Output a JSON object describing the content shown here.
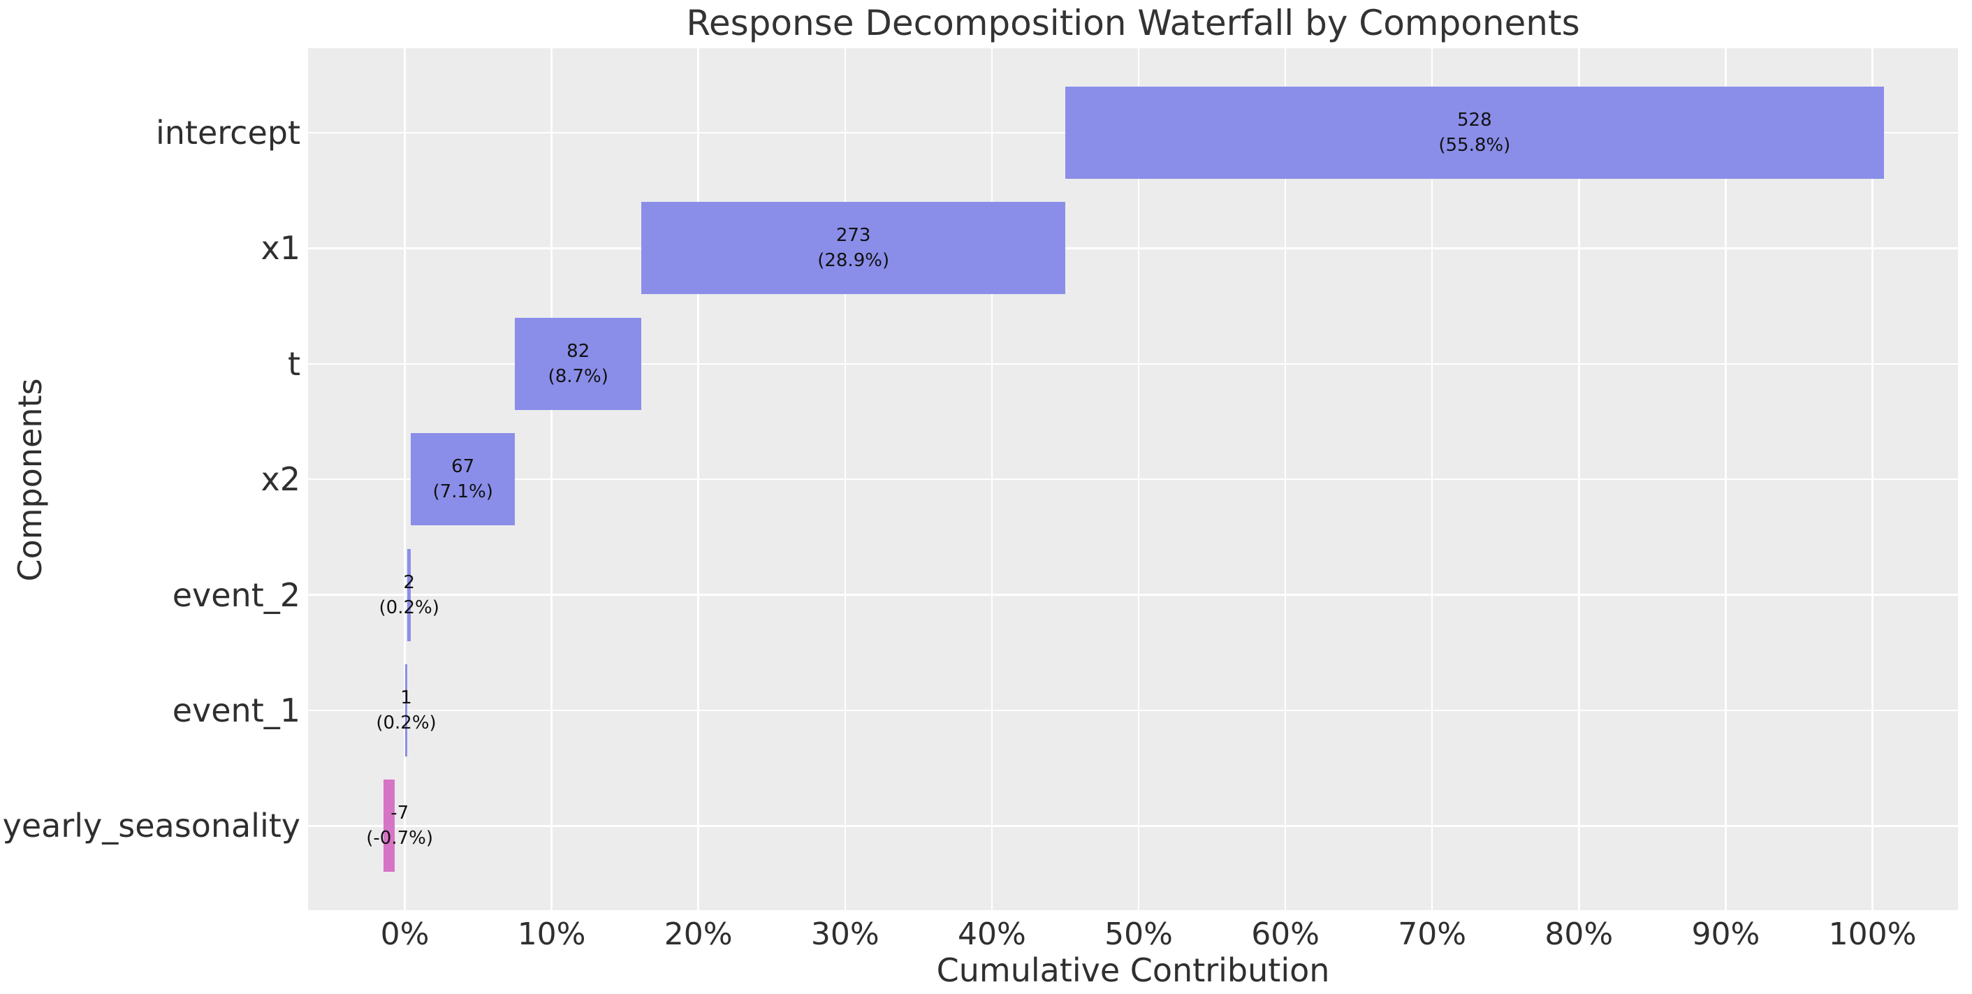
{
  "chart_data": {
    "type": "bar",
    "subtype": "horizontal_waterfall",
    "title": "Response Decomposition Waterfall by Components",
    "xlabel": "Cumulative Contribution",
    "ylabel": "Components",
    "legend": false,
    "grid": true,
    "background": "#ececec",
    "xlim_pct": [
      -6.6,
      105.8
    ],
    "x_ticks": [
      {
        "value": 0,
        "label": "0%"
      },
      {
        "value": 10,
        "label": "10%"
      },
      {
        "value": 20,
        "label": "20%"
      },
      {
        "value": 30,
        "label": "30%"
      },
      {
        "value": 40,
        "label": "40%"
      },
      {
        "value": 50,
        "label": "50%"
      },
      {
        "value": 60,
        "label": "60%"
      },
      {
        "value": 70,
        "label": "70%"
      },
      {
        "value": 80,
        "label": "80%"
      },
      {
        "value": 90,
        "label": "90%"
      },
      {
        "value": 100,
        "label": "100%"
      }
    ],
    "categories": [
      "intercept",
      "x1",
      "t",
      "x2",
      "event_2",
      "event_1",
      "yearly_seasonality"
    ],
    "colors": {
      "positive": "#8a8ee9",
      "negative": "#d674c5"
    },
    "bars": [
      {
        "category": "intercept",
        "value": 528,
        "share_pct": 55.8,
        "value_label": "528",
        "share_label": "(55.8%)",
        "start_pct": 45.0,
        "end_pct": 100.77,
        "color_role": "positive"
      },
      {
        "category": "x1",
        "value": 273,
        "share_pct": 28.9,
        "value_label": "273",
        "share_label": "(28.9%)",
        "start_pct": 16.13,
        "end_pct": 45.0,
        "color_role": "positive"
      },
      {
        "category": "t",
        "value": 82,
        "share_pct": 8.7,
        "value_label": "82",
        "share_label": "(8.7%)",
        "start_pct": 7.5,
        "end_pct": 16.13,
        "color_role": "positive"
      },
      {
        "category": "x2",
        "value": 67,
        "share_pct": 7.1,
        "value_label": "67",
        "share_label": "(7.1%)",
        "start_pct": 0.42,
        "end_pct": 7.5,
        "color_role": "positive"
      },
      {
        "category": "event_2",
        "value": 2,
        "share_pct": 0.2,
        "value_label": "2",
        "share_label": "(0.2%)",
        "start_pct": 0.17,
        "end_pct": 0.42,
        "color_role": "positive"
      },
      {
        "category": "event_1",
        "value": 1,
        "share_pct": 0.2,
        "value_label": "1",
        "share_label": "(0.2%)",
        "start_pct": 0.02,
        "end_pct": 0.17,
        "color_role": "positive"
      },
      {
        "category": "yearly_seasonality",
        "value": -7,
        "share_pct": -0.7,
        "value_label": "-7",
        "share_label": "(-0.7%)",
        "start_pct": -1.43,
        "end_pct": -0.71,
        "color_role": "negative",
        "label_center_pct": -0.35
      }
    ]
  }
}
